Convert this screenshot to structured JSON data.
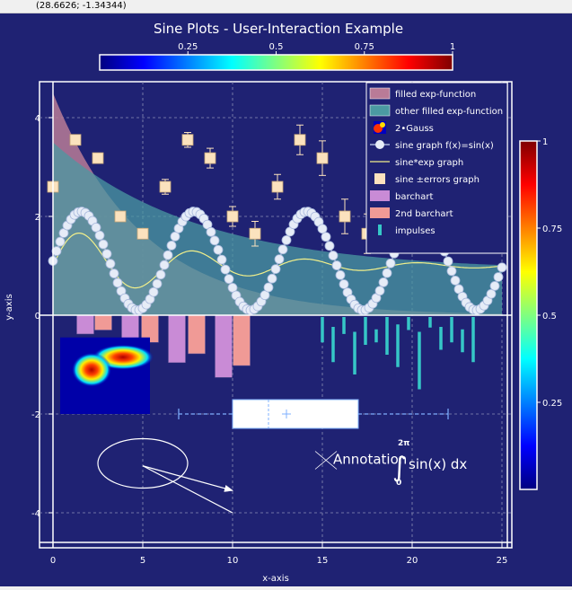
{
  "status": {
    "coords": "(28.6626; -1.34344)"
  },
  "chart_data": {
    "type": "line",
    "title": "Sine Plots - User-Interaction Example",
    "xlabel": "x-axis",
    "ylabel": "y-axis",
    "xlim": [
      -0.7,
      25.5
    ],
    "ylim": [
      -4.8,
      4.8
    ],
    "xticks": [
      0,
      5,
      10,
      15,
      20,
      25
    ],
    "yticks": [
      -4,
      -2,
      0,
      2,
      4
    ],
    "grid": true,
    "legend_position": "top-right",
    "colorbar_top": {
      "ticks": [
        "0.25",
        "0.5",
        "0.75",
        "1"
      ],
      "colormap": "jet"
    },
    "colorbar_right": {
      "ticks": [
        "0.25",
        "0.5",
        "0.75",
        "1"
      ],
      "colormap": "jet"
    },
    "colors": {
      "background": "#1f2273",
      "filled_exp": "#b97b97",
      "other_filled_exp": "#4b9aa2",
      "sine_marker": "#e6ecf7",
      "sine_exp": "#f2f08a",
      "errors_marker": "#fbe2be",
      "barchart": "#c98bd6",
      "barchart2": "#f09a96",
      "impulses": "#36c7c7"
    },
    "legend": [
      {
        "label": "filled exp-function",
        "icon": "filled-rect"
      },
      {
        "label": "other filled exp-function",
        "icon": "filled-rect"
      },
      {
        "label": "2•Gauss",
        "icon": "heatmap"
      },
      {
        "label": "sine graph f(x)=sin(x)",
        "icon": "line-circle"
      },
      {
        "label": "sine*exp graph",
        "icon": "line"
      },
      {
        "label": "sine ±errors graph",
        "icon": "square"
      },
      {
        "label": "barchart",
        "icon": "bar"
      },
      {
        "label": "2nd barchart",
        "icon": "bar"
      },
      {
        "label": "impulses",
        "icon": "impulse"
      }
    ],
    "series": [
      {
        "name": "filled exp-function",
        "formula": "4.5*exp(-x/5)",
        "x_range": [
          0,
          25
        ]
      },
      {
        "name": "other filled exp-function",
        "formula": "0.9+2.6*exp(-x/8)",
        "x_range": [
          0,
          25
        ]
      },
      {
        "name": "sine graph f(x)=sin(x)",
        "formula": "1.1+sin(x)",
        "x_range": [
          0,
          25
        ],
        "points": 126
      },
      {
        "name": "sine*exp graph",
        "formula": "1.0+0.8*sin(x)*exp(-x/8)",
        "x_range": [
          0,
          25
        ]
      },
      {
        "name": "sine ±errors graph",
        "x": [
          0,
          1.25,
          2.5,
          3.75,
          5,
          6.25,
          7.5,
          8.75,
          10,
          11.25,
          12.5,
          13.75,
          15,
          16.25,
          17.5,
          18.75,
          20,
          21.25,
          22.5
        ],
        "y": [
          2.6,
          3.55,
          3.18,
          2.0,
          1.65,
          2.6,
          3.55,
          3.18,
          2.0,
          1.65,
          2.6,
          3.55,
          3.18,
          2.0,
          1.65,
          2.6,
          3.55,
          3.18,
          2.0
        ],
        "err": [
          0.1,
          0.1,
          0.1,
          0.1,
          0.1,
          0.15,
          0.15,
          0.2,
          0.2,
          0.25,
          0.25,
          0.3,
          0.35,
          0.35,
          0.4,
          0.4,
          0.45,
          0.45,
          0.5
        ]
      },
      {
        "name": "barchart",
        "x": [
          1.8,
          4.3,
          6.9,
          9.5
        ],
        "y": [
          -0.38,
          -0.68,
          -0.96,
          -1.26
        ]
      },
      {
        "name": "2nd barchart",
        "x": [
          2.8,
          5.4,
          8.0,
          10.5
        ],
        "y": [
          -0.3,
          -0.55,
          -0.78,
          -1.02
        ]
      },
      {
        "name": "impulses",
        "x": [
          15,
          15.6,
          16.2,
          16.8,
          17.4,
          18,
          18.6,
          19.2,
          19.8,
          20.4,
          21,
          21.6,
          22.2,
          22.8,
          23.4
        ],
        "y_top": [
          0,
          -0.2,
          0,
          -0.3,
          0,
          -0.25,
          0,
          -0.15,
          0,
          -0.3,
          0,
          -0.2,
          0,
          -0.25,
          0
        ],
        "y_bottom": [
          -0.55,
          -0.95,
          -0.38,
          -1.2,
          -0.6,
          -0.55,
          -0.8,
          -1.05,
          -0.3,
          -1.5,
          -0.25,
          -0.7,
          -0.55,
          -0.75,
          -0.95
        ]
      }
    ],
    "boxplot": {
      "whisker_low": 7,
      "q1": 10,
      "median": 12,
      "mean": 13,
      "q3": 17,
      "whisker_high": 22,
      "y": -2.0
    },
    "gauss_image": {
      "x_range": [
        0.4,
        5.4
      ],
      "y_range": [
        -2.0,
        -0.45
      ]
    },
    "annotations": [
      {
        "type": "ellipse",
        "center": [
          5,
          -3.0
        ],
        "width": 5,
        "height": 1.0
      },
      {
        "type": "arrow",
        "from": [
          5,
          -3.05
        ],
        "to": [
          10,
          -3.55
        ]
      },
      {
        "type": "line",
        "from": [
          5,
          -3.05
        ],
        "to": [
          10,
          -4.0
        ]
      },
      {
        "type": "text",
        "label": "Annotation",
        "at": [
          15.2,
          -2.9
        ]
      },
      {
        "type": "formula",
        "integral_upper": "2π",
        "integral_lower": "0",
        "expression": "sin(x) dx",
        "at": [
          19.5,
          -3.0
        ]
      }
    ]
  }
}
